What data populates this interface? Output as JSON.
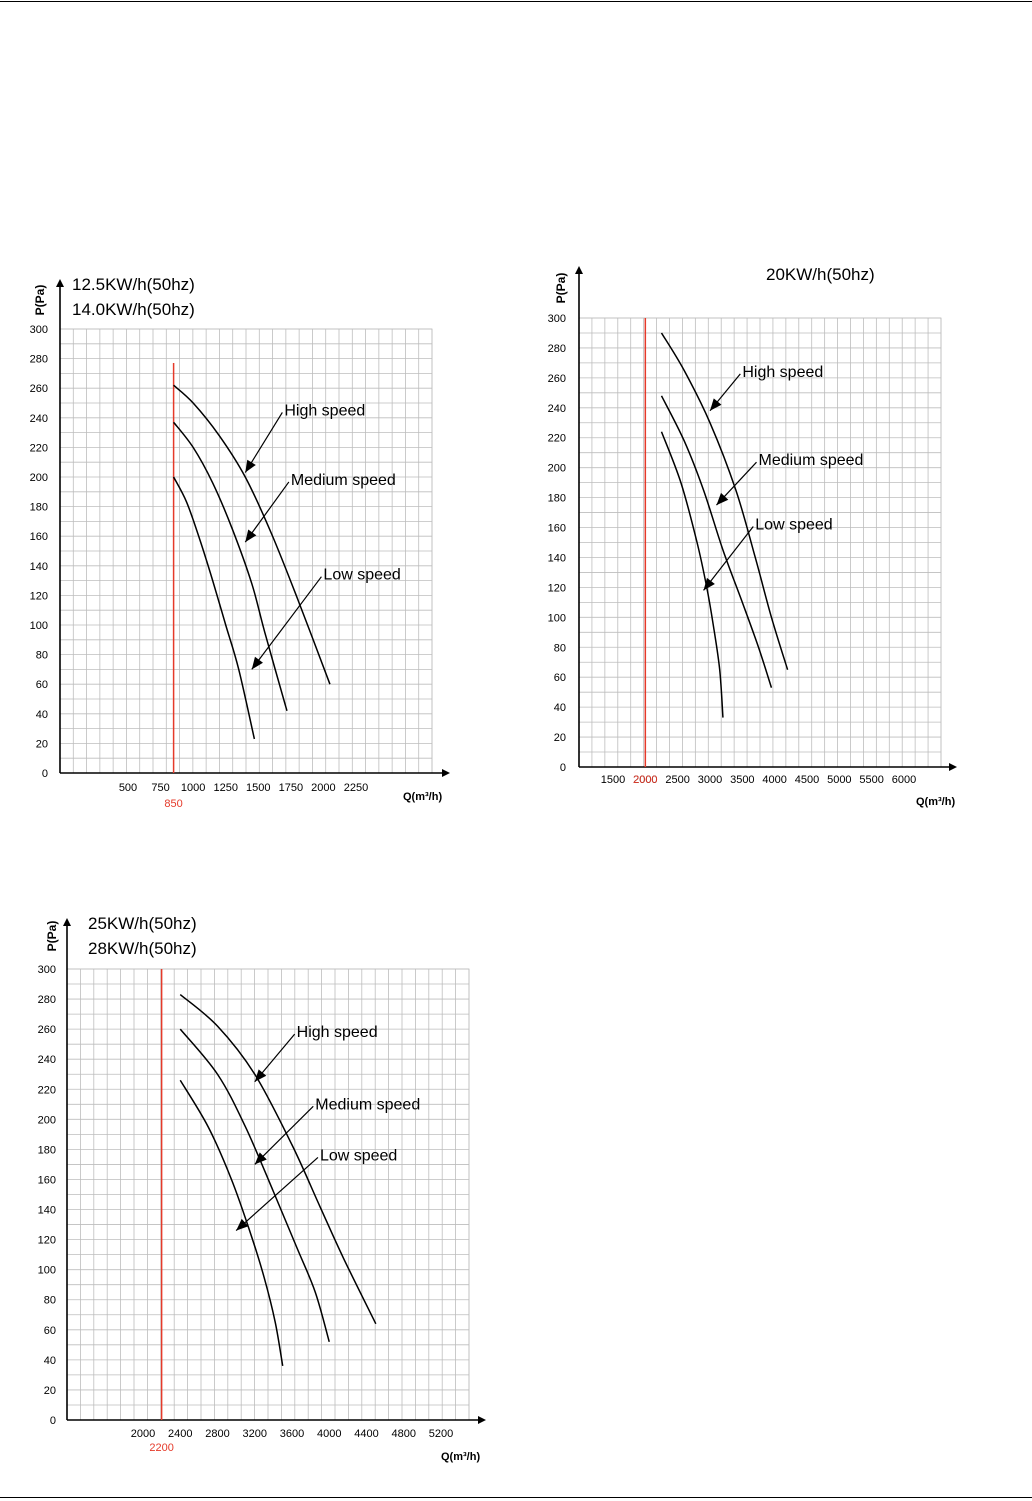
{
  "charts": [
    {
      "id": "c1",
      "type": "line",
      "title_lines": [
        "12.5KW/h(50hz)",
        "14.0KW/h(50hz)"
      ],
      "title_align": "left",
      "ylabel": "P(Pa)",
      "xlabel": "Q(m³/h)",
      "ylim": [
        0,
        300
      ],
      "y_ticks": [
        0,
        20,
        40,
        60,
        80,
        100,
        120,
        140,
        160,
        180,
        200,
        220,
        240,
        260,
        280,
        300
      ],
      "x_ticks": [
        500,
        750,
        1000,
        1250,
        1500,
        1750,
        2000,
        2250
      ],
      "reference": {
        "value": 850,
        "label": "850"
      },
      "series": [
        {
          "name": "High speed",
          "points": [
            [
              850,
              262
            ],
            [
              1000,
              250
            ],
            [
              1200,
              228
            ],
            [
              1400,
              200
            ],
            [
              1600,
              162
            ],
            [
              1800,
              118
            ],
            [
              2050,
              60
            ]
          ]
        },
        {
          "name": "Medium speed",
          "points": [
            [
              850,
              237
            ],
            [
              1000,
              220
            ],
            [
              1150,
              196
            ],
            [
              1300,
              165
            ],
            [
              1450,
              128
            ],
            [
              1550,
              95
            ],
            [
              1720,
              42
            ]
          ]
        },
        {
          "name": "Low speed",
          "points": [
            [
              850,
              200
            ],
            [
              950,
              183
            ],
            [
              1050,
              158
            ],
            [
              1150,
              130
            ],
            [
              1250,
              100
            ],
            [
              1350,
              70
            ],
            [
              1470,
              23
            ]
          ]
        }
      ],
      "callouts": [
        {
          "label": "High speed",
          "target": [
            1400,
            203
          ],
          "text_at": [
            1700,
            245
          ]
        },
        {
          "label": "Medium speed",
          "target": [
            1400,
            156
          ],
          "text_at": [
            1750,
            198
          ]
        },
        {
          "label": "Low speed",
          "target": [
            1450,
            70
          ],
          "text_at": [
            2000,
            134
          ]
        }
      ]
    },
    {
      "id": "c2",
      "type": "line",
      "title_lines": [
        "20KW/h(50hz)"
      ],
      "title_align": "center",
      "ylabel": "P(Pa)",
      "xlabel": "Q(m³/h)",
      "ylim": [
        0,
        300
      ],
      "y_ticks": [
        0,
        20,
        40,
        60,
        80,
        100,
        120,
        140,
        160,
        180,
        200,
        220,
        240,
        260,
        280,
        300
      ],
      "x_ticks": [
        1500,
        2000,
        2500,
        3000,
        3500,
        4000,
        4500,
        5000,
        5500,
        6000
      ],
      "reference": {
        "value": 2000,
        "label": "2000"
      },
      "series": [
        {
          "name": "High speed",
          "points": [
            [
              2250,
              290
            ],
            [
              2600,
              265
            ],
            [
              3000,
              230
            ],
            [
              3400,
              185
            ],
            [
              3700,
              140
            ],
            [
              3950,
              100
            ],
            [
              4200,
              65
            ]
          ]
        },
        {
          "name": "Medium speed",
          "points": [
            [
              2250,
              248
            ],
            [
              2600,
              218
            ],
            [
              2900,
              185
            ],
            [
              3200,
              145
            ],
            [
              3500,
              110
            ],
            [
              3750,
              80
            ],
            [
              3950,
              53
            ]
          ]
        },
        {
          "name": "Low speed",
          "points": [
            [
              2250,
              224
            ],
            [
              2550,
              190
            ],
            [
              2800,
              150
            ],
            [
              2950,
              120
            ],
            [
              3050,
              95
            ],
            [
              3150,
              65
            ],
            [
              3200,
              33
            ]
          ]
        }
      ],
      "callouts": [
        {
          "label": "High speed",
          "target": [
            3000,
            238
          ],
          "text_at": [
            3500,
            264
          ]
        },
        {
          "label": "Medium speed",
          "target": [
            3100,
            175
          ],
          "text_at": [
            3750,
            205
          ]
        },
        {
          "label": "Low speed",
          "target": [
            2900,
            118
          ],
          "text_at": [
            3700,
            162
          ]
        }
      ]
    },
    {
      "id": "c3",
      "type": "line",
      "title_lines": [
        "25KW/h(50hz)",
        "28KW/h(50hz)"
      ],
      "title_align": "left",
      "ylabel": "P(Pa)",
      "xlabel": "Q(m³/h)",
      "ylim": [
        0,
        300
      ],
      "y_ticks": [
        0,
        20,
        40,
        60,
        80,
        100,
        120,
        140,
        160,
        180,
        200,
        220,
        240,
        260,
        280,
        300
      ],
      "x_ticks": [
        2000,
        2400,
        2800,
        3200,
        3600,
        4000,
        4400,
        4800,
        5200
      ],
      "reference": {
        "value": 2200,
        "label": "2200"
      },
      "series": [
        {
          "name": "High speed",
          "points": [
            [
              2400,
              283
            ],
            [
              2800,
              262
            ],
            [
              3200,
              230
            ],
            [
              3600,
              183
            ],
            [
              3900,
              142
            ],
            [
              4150,
              108
            ],
            [
              4500,
              64
            ]
          ]
        },
        {
          "name": "Medium speed",
          "points": [
            [
              2400,
              260
            ],
            [
              2800,
              230
            ],
            [
              3100,
              195
            ],
            [
              3400,
              152
            ],
            [
              3650,
              115
            ],
            [
              3850,
              85
            ],
            [
              4000,
              52
            ]
          ]
        },
        {
          "name": "Low speed",
          "points": [
            [
              2400,
              226
            ],
            [
              2700,
              195
            ],
            [
              2950,
              160
            ],
            [
              3150,
              125
            ],
            [
              3300,
              95
            ],
            [
              3420,
              65
            ],
            [
              3500,
              36
            ]
          ]
        }
      ],
      "callouts": [
        {
          "label": "High speed",
          "target": [
            3200,
            225
          ],
          "text_at": [
            3650,
            258
          ]
        },
        {
          "label": "Medium speed",
          "target": [
            3200,
            170
          ],
          "text_at": [
            3850,
            210
          ]
        },
        {
          "label": "Low speed",
          "target": [
            3000,
            126
          ],
          "text_at": [
            3900,
            176
          ]
        }
      ]
    }
  ]
}
